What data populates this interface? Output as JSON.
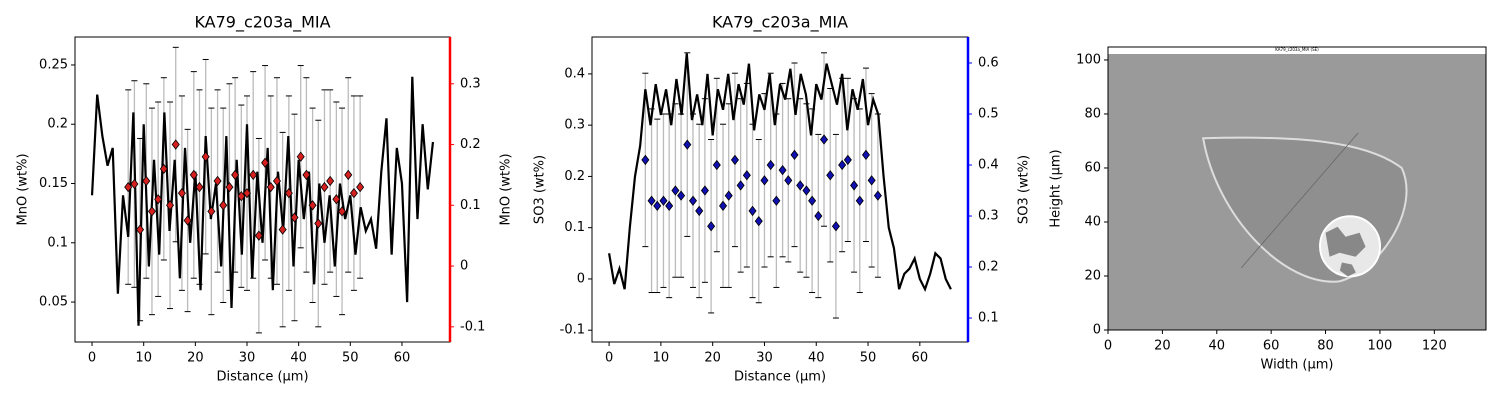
{
  "chart_data": [
    {
      "type": "line",
      "title": "KA79_c203a_MIA",
      "x_label": "Distance (µm)",
      "y_label": "MnO (wt%)",
      "y2_label": "MnO (wt%)",
      "xlim": [
        -3.3,
        69.3
      ],
      "xticks": [
        0,
        10,
        20,
        30,
        40,
        50,
        60
      ],
      "ylim": [
        0.0163,
        0.2736
      ],
      "yticks": [
        0.05,
        0.1,
        0.15,
        0.2,
        0.25
      ],
      "y2lim": [
        -0.125,
        0.377
      ],
      "y2ticks": [
        -0.1,
        0,
        0.1,
        0.2,
        0.3
      ],
      "y2color": "#ff0000",
      "series": [
        {
          "x": [
            0,
            1,
            2,
            3,
            4,
            5,
            6,
            7,
            8,
            9,
            10,
            11,
            12,
            13,
            14,
            15,
            16,
            17,
            18,
            19,
            20,
            21,
            22,
            23,
            24,
            25,
            26,
            27,
            28,
            29,
            30,
            31,
            32,
            33,
            34,
            35,
            36,
            37,
            38,
            39,
            40,
            41,
            42,
            43,
            44,
            45,
            46,
            47,
            48,
            49,
            50,
            51,
            52,
            53,
            54,
            55,
            56,
            57,
            58,
            59,
            60,
            61,
            62,
            63,
            64,
            65,
            66
          ],
          "values": [
            0.14,
            0.225,
            0.19,
            0.165,
            0.18,
            0.057,
            0.14,
            0.105,
            0.21,
            0.03,
            0.2,
            0.08,
            0.17,
            0.09,
            0.21,
            0.11,
            0.17,
            0.07,
            0.18,
            0.1,
            0.16,
            0.06,
            0.19,
            0.12,
            0.15,
            0.08,
            0.19,
            0.045,
            0.17,
            0.09,
            0.2,
            0.07,
            0.16,
            0.1,
            0.18,
            0.06,
            0.16,
            0.11,
            0.19,
            0.08,
            0.17,
            0.12,
            0.16,
            0.065,
            0.15,
            0.1,
            0.14,
            0.08,
            0.15,
            0.12,
            0.14,
            0.09,
            0.13,
            0.11,
            0.12,
            0.095,
            0.16,
            0.205,
            0.09,
            0.18,
            0.15,
            0.05,
            0.24,
            0.12,
            0.2,
            0.145,
            0.185
          ],
          "color": "#000000"
        },
        {
          "axis": "y2",
          "x": [
            7,
            8.2,
            9.3,
            10.5,
            11.6,
            12.8,
            13.9,
            15.1,
            16.2,
            17.4,
            18.5,
            19.7,
            20.8,
            22,
            23.1,
            24.3,
            25.4,
            26.6,
            27.7,
            28.9,
            30,
            31.2,
            32.3,
            33.5,
            34.6,
            35.8,
            36.9,
            38.1,
            39.2,
            40.4,
            41.5,
            42.7,
            43.8,
            45,
            46.1,
            47.3,
            48.4,
            49.6,
            50.7,
            51.9
          ],
          "values": [
            0.13,
            0.135,
            0.06,
            0.14,
            0.09,
            0.11,
            0.16,
            0.1,
            0.2,
            0.12,
            0.075,
            0.15,
            0.13,
            0.18,
            0.09,
            0.14,
            0.1,
            0.13,
            0.15,
            0.115,
            0.12,
            0.15,
            0.05,
            0.17,
            0.13,
            0.14,
            0.06,
            0.12,
            0.08,
            0.18,
            0.15,
            0.1,
            0.07,
            0.13,
            0.14,
            0.11,
            0.09,
            0.15,
            0.12,
            0.13
          ],
          "errors": [
            0.16,
            0.17,
            0.15,
            0.16,
            0.17,
            0.16,
            0.15,
            0.17,
            0.16,
            0.16,
            0.15,
            0.17,
            0.16,
            0.16,
            0.17,
            0.15,
            0.16,
            0.17,
            0.16,
            0.15,
            0.16,
            0.17,
            0.16,
            0.16,
            0.15,
            0.17,
            0.16,
            0.16,
            0.17,
            0.15,
            0.16,
            0.16,
            0.17,
            0.16,
            0.15,
            0.16,
            0.17,
            0.16,
            0.16,
            0.15
          ],
          "color": "#d62020"
        }
      ]
    },
    {
      "type": "line",
      "title": "KA79_c203a_MIA",
      "x_label": "Distance (µm)",
      "y_label": "SO3 (wt%)",
      "y2_label": "SO3 (wt%)",
      "xlim": [
        -3.3,
        69.3
      ],
      "xticks": [
        0,
        10,
        20,
        30,
        40,
        50,
        60
      ],
      "ylim": [
        -0.123,
        0.472
      ],
      "yticks": [
        -0.1,
        0,
        0.1,
        0.2,
        0.3,
        0.4
      ],
      "y2lim": [
        0.053,
        0.651
      ],
      "y2ticks": [
        0.1,
        0.2,
        0.3,
        0.4,
        0.5,
        0.6
      ],
      "y2color": "#0000ff",
      "series": [
        {
          "x": [
            0,
            1,
            2,
            3,
            4,
            5,
            6,
            7,
            8,
            9,
            10,
            11,
            12,
            13,
            14,
            15,
            16,
            17,
            18,
            19,
            20,
            21,
            22,
            23,
            24,
            25,
            26,
            27,
            28,
            29,
            30,
            31,
            32,
            33,
            34,
            35,
            36,
            37,
            38,
            39,
            40,
            41,
            42,
            43,
            44,
            45,
            46,
            47,
            48,
            49,
            50,
            51,
            52,
            53,
            54,
            55,
            56,
            57,
            58,
            59,
            60,
            61,
            62,
            63,
            64,
            65,
            66
          ],
          "values": [
            0.05,
            -0.01,
            0.02,
            -0.02,
            0.1,
            0.2,
            0.26,
            0.37,
            0.3,
            0.38,
            0.32,
            0.37,
            0.3,
            0.39,
            0.32,
            0.44,
            0.31,
            0.36,
            0.3,
            0.4,
            0.28,
            0.37,
            0.33,
            0.4,
            0.31,
            0.38,
            0.34,
            0.42,
            0.29,
            0.36,
            0.33,
            0.4,
            0.3,
            0.38,
            0.35,
            0.41,
            0.32,
            0.4,
            0.36,
            0.28,
            0.38,
            0.35,
            0.42,
            0.38,
            0.34,
            0.4,
            0.29,
            0.37,
            0.33,
            0.39,
            0.3,
            0.35,
            0.32,
            0.2,
            0.1,
            0.06,
            -0.02,
            0.01,
            0.02,
            0.04,
            0,
            -0.02,
            0.01,
            0.05,
            0.04,
            0,
            -0.02
          ],
          "color": "#000000"
        },
        {
          "axis": "y2",
          "x": [
            7,
            8.2,
            9.3,
            10.5,
            11.6,
            12.8,
            13.9,
            15.1,
            16.2,
            17.4,
            18.5,
            19.7,
            20.8,
            22,
            23.1,
            24.3,
            25.4,
            26.6,
            27.7,
            28.9,
            30,
            31.2,
            32.3,
            33.5,
            34.6,
            35.8,
            36.9,
            38.1,
            39.2,
            40.4,
            41.5,
            42.7,
            43.8,
            45,
            46.1,
            47.3,
            48.4,
            49.6,
            50.7,
            51.9
          ],
          "values": [
            0.41,
            0.33,
            0.32,
            0.33,
            0.32,
            0.35,
            0.34,
            0.44,
            0.33,
            0.31,
            0.35,
            0.28,
            0.4,
            0.32,
            0.34,
            0.41,
            0.36,
            0.38,
            0.31,
            0.29,
            0.37,
            0.4,
            0.33,
            0.39,
            0.37,
            0.42,
            0.36,
            0.35,
            0.33,
            0.3,
            0.45,
            0.38,
            0.28,
            0.4,
            0.41,
            0.36,
            0.33,
            0.42,
            0.37,
            0.34
          ],
          "errors": [
            0.17,
            0.18,
            0.17,
            0.17,
            0.18,
            0.17,
            0.16,
            0.18,
            0.17,
            0.17,
            0.18,
            0.17,
            0.17,
            0.16,
            0.18,
            0.17,
            0.17,
            0.18,
            0.17,
            0.16,
            0.17,
            0.18,
            0.17,
            0.17,
            0.16,
            0.18,
            0.17,
            0.17,
            0.18,
            0.16,
            0.17,
            0.17,
            0.18,
            0.17,
            0.16,
            0.17,
            0.18,
            0.17,
            0.17,
            0.16
          ],
          "color": "#1010b0"
        }
      ]
    },
    {
      "type": "image",
      "image_label": "KA79_c203a_MIA (SE)",
      "x_label": "Width (µm)",
      "y_label": "Height (µm)",
      "xlim": [
        0,
        139
      ],
      "xticks": [
        0,
        20,
        40,
        60,
        80,
        100,
        120
      ],
      "ylim": [
        0,
        104.8
      ],
      "yticks": [
        0,
        20,
        40,
        60,
        80,
        100
      ]
    }
  ]
}
